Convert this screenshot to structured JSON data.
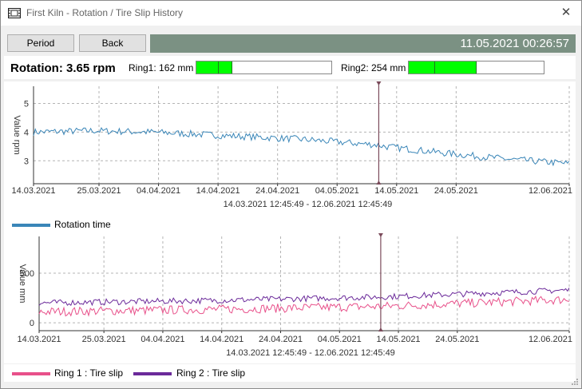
{
  "window": {
    "title": "First Kiln - Rotation / Tire Slip History",
    "close_glyph": "✕"
  },
  "toolbar": {
    "period_label": "Period",
    "back_label": "Back",
    "datetime": "11.05.2021 00:26:57"
  },
  "status": {
    "rotation": "Rotation: 3.65 rpm",
    "ring1_label": "Ring1: 162 mm",
    "ring2_label": "Ring2: 254 mm",
    "ring1_fill_segments": [
      0.0,
      0.19
    ],
    "ring2_fill_segments": [
      0.0,
      0.5
    ]
  },
  "colors": {
    "rotation": "#3a86b8",
    "ring1": "#e8508a",
    "ring2": "#6b2a9a",
    "accent": "#7b9183",
    "bar_fill": "#00ff00"
  },
  "chart_data": [
    {
      "type": "line",
      "title": "",
      "ylabel": "Value rpm",
      "xlabel": "14.03.2021 12:45:49 - 12.06.2021 12:45:49",
      "ylim": [
        2.2,
        5.6
      ],
      "yticks": [
        3,
        4,
        5
      ],
      "x_ticks": [
        "14.03.2021",
        "25.03.2021",
        "04.04.2021",
        "14.04.2021",
        "24.04.2021",
        "04.05.2021",
        "14.05.2021",
        "24.05.2021",
        "12.06.2021"
      ],
      "x_tick_days": [
        0,
        11,
        21,
        31,
        41,
        51,
        61,
        71,
        90
      ],
      "x_range_days": [
        0,
        90
      ],
      "cursor_day": 58,
      "series": [
        {
          "name": "Rotation time",
          "trend": [
            [
              0,
              4.0
            ],
            [
              10,
              4.05
            ],
            [
              20,
              4.0
            ],
            [
              30,
              3.9
            ],
            [
              45,
              3.75
            ],
            [
              58,
              3.55
            ],
            [
              59,
              3.5
            ],
            [
              70,
              3.25
            ],
            [
              80,
              3.05
            ],
            [
              90,
              2.9
            ]
          ],
          "noise": 0.12
        }
      ],
      "legend": [
        "Rotation time"
      ]
    },
    {
      "type": "line",
      "title": "",
      "ylabel": "Value mm",
      "xlabel": "14.03.2021 12:45:49 - 12.06.2021 12:45:49",
      "ylim": [
        -80,
        870
      ],
      "yticks": [
        0,
        500
      ],
      "x_ticks": [
        "14.03.2021",
        "25.03.2021",
        "04.04.2021",
        "14.04.2021",
        "24.04.2021",
        "04.05.2021",
        "14.05.2021",
        "24.05.2021",
        "12.06.2021"
      ],
      "x_tick_days": [
        0,
        11,
        21,
        31,
        41,
        51,
        61,
        71,
        90
      ],
      "x_range_days": [
        0,
        90
      ],
      "cursor_day": 58,
      "series": [
        {
          "name": "Ring 1 : Tire slip",
          "trend": [
            [
              0,
              110
            ],
            [
              30,
              135
            ],
            [
              58,
              165
            ],
            [
              90,
              235
            ]
          ],
          "noise": 45
        },
        {
          "name": "Ring 2 : Tire slip",
          "trend": [
            [
              0,
              200
            ],
            [
              30,
              225
            ],
            [
              58,
              260
            ],
            [
              90,
              330
            ]
          ],
          "noise": 30
        }
      ],
      "legend": [
        "Ring 1 : Tire slip",
        "Ring 2 : Tire slip"
      ]
    }
  ]
}
